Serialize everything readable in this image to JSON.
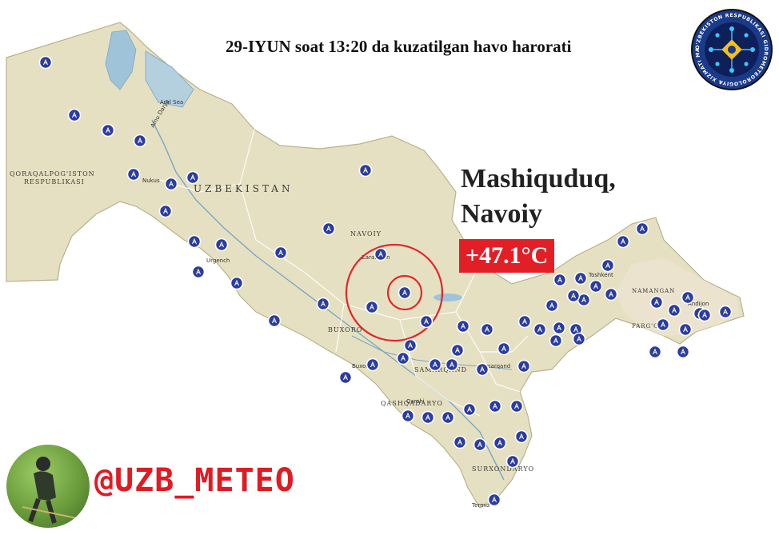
{
  "header": {
    "title": "29-IYUN soat 13:20 da kuzatilgan havo harorati"
  },
  "highlight": {
    "station_line1": "Mashiquduq,",
    "station_line2": "Navoiy",
    "temperature": "+47.1°C",
    "badge_color": "#e21f26"
  },
  "footer": {
    "handle": "@UZB_METEO",
    "handle_color": "#e11b22"
  },
  "logo": {
    "text": "O'ZBEKISTON RESPUBLIKASI GIDROMETEOROLOGIYA XIZMATI MARKAZI",
    "ring_color": "#1a3a8a",
    "center_color": "#f2c21b"
  },
  "map_labels": {
    "country": "UZBEKISTAN",
    "karakalpak_1": "QORAQALPOG'ISTON",
    "karakalpak_2": "RESPUBLIKASI",
    "navoiy": "NAVOIY",
    "buxoro": "BUXORO",
    "samarqand": "SAMARQAND",
    "qashqadaryo": "QASHQADARYO",
    "surxondaryo": "SURXONDARYO",
    "namangan": "NAMANGAN",
    "fargona": "FARG'ONA",
    "aral_sea": "Aral Sea",
    "amu_darya": "Amu Darya",
    "nukus": "Nukus",
    "urgench": "Urgench",
    "zarafshan": "Zarafshan",
    "buxoro_city": "Buxoro",
    "samarqand_city": "Samarqand",
    "qarshi": "Qarshi",
    "termiz": "Termiz",
    "tashkent": "Toshkent",
    "andijon": "Andijon"
  },
  "map_colors": {
    "land": "#e6e0c2",
    "land_fergana": "#ece3cf",
    "water": "#9fc3d8",
    "station": "#2b3d9e",
    "circle": "#e3262b"
  }
}
